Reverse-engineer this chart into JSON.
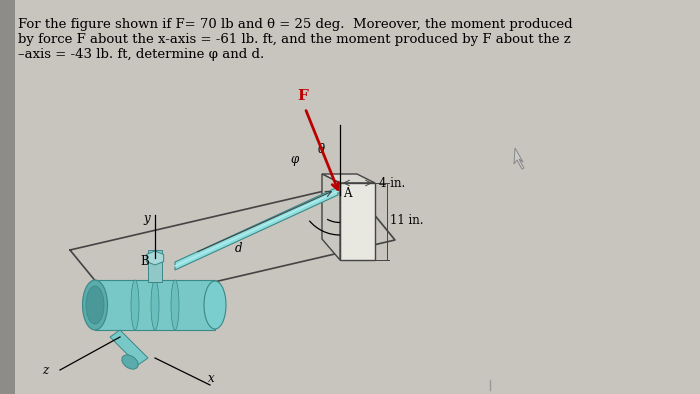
{
  "title_line1": "For the figure shown if F= 70 lb and θ = 25 deg.  Moreover, the moment produced",
  "title_line2": "by force F about the x-axis = -61 lb. ft, and the moment produced by F about the z",
  "title_line3": "–axis = -43 lb. ft, determine φ and d.",
  "bg_color": "#c8c4be",
  "text_color": "#000000",
  "title_fontsize": 9.5,
  "fig_width": 7.0,
  "fig_height": 3.94,
  "dpi": 100,
  "frame_color": "#444444",
  "pipe_color": "#6dcbcb",
  "pipe_dark": "#3a8888",
  "pipe_light": "#90dede",
  "valve_color": "#78c8c8",
  "red_color": "#bb0000",
  "label_F": "F",
  "label_A": "A",
  "label_B": "B",
  "label_d": "d",
  "label_y": "y",
  "label_x": "x",
  "label_z": "z",
  "label_4in": "4 in.",
  "label_11in": "11 in.",
  "label_theta": "θ",
  "label_phi": "φ",
  "cursor_color": "#888888"
}
